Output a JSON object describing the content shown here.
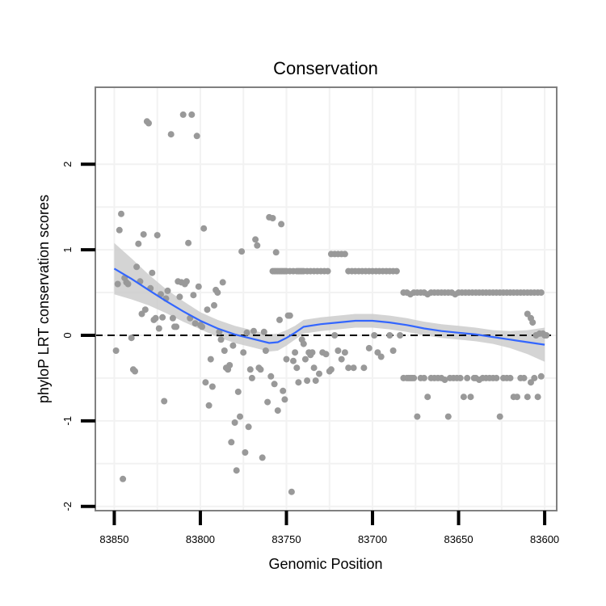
{
  "chart_data": {
    "type": "scatter",
    "title": "Conservation",
    "xlabel": "Genomic Position",
    "ylabel": "phyloP LRT conservation scores",
    "x_reversed": true,
    "xlim": [
      83861,
      83593
    ],
    "ylim": [
      -2.05,
      2.9
    ],
    "xticks": [
      83850,
      83800,
      83750,
      83700,
      83650,
      83600
    ],
    "xtick_labels": [
      "83850",
      "83800",
      "83750",
      "83700",
      "83650",
      "83600"
    ],
    "yticks": [
      -2,
      -1,
      0,
      1,
      2
    ],
    "ytick_labels": [
      "-2",
      "-1",
      "0",
      "1",
      "2"
    ],
    "reference_line": {
      "y": 0,
      "style": "dashed"
    },
    "colors": {
      "points": "#999999",
      "smooth": "#3366ff",
      "band": "#cccccc",
      "border": "#808080",
      "grid": "#f2f2f2"
    },
    "series": [
      {
        "name": "scores",
        "points": [
          [
            83849,
            -0.18
          ],
          [
            83848,
            0.6
          ],
          [
            83847,
            1.23
          ],
          [
            83846,
            1.42
          ],
          [
            83845,
            -1.68
          ],
          [
            83844,
            0.67
          ],
          [
            83843,
            0.62
          ],
          [
            83842,
            0.6
          ],
          [
            83840,
            -0.03
          ],
          [
            83839,
            -0.4
          ],
          [
            83838,
            -0.42
          ],
          [
            83837,
            0.8
          ],
          [
            83836,
            1.07
          ],
          [
            83835,
            0.63
          ],
          [
            83834,
            0.25
          ],
          [
            83833,
            1.18
          ],
          [
            83832,
            0.3
          ],
          [
            83831,
            2.5
          ],
          [
            83830,
            2.48
          ],
          [
            83829,
            0.55
          ],
          [
            83828,
            0.73
          ],
          [
            83827,
            0.18
          ],
          [
            83826,
            0.2
          ],
          [
            83825,
            1.17
          ],
          [
            83824,
            0.08
          ],
          [
            83823,
            0.48
          ],
          [
            83822,
            0.21
          ],
          [
            83821,
            -0.77
          ],
          [
            83820,
            0.43
          ],
          [
            83819,
            0.52
          ],
          [
            83817,
            2.35
          ],
          [
            83816,
            0.2
          ],
          [
            83815,
            0.1
          ],
          [
            83814,
            0.1
          ],
          [
            83813,
            0.63
          ],
          [
            83812,
            0.45
          ],
          [
            83811,
            0.62
          ],
          [
            83810,
            2.58
          ],
          [
            83809,
            0.6
          ],
          [
            83808,
            0.63
          ],
          [
            83807,
            1.08
          ],
          [
            83806,
            0.2
          ],
          [
            83805,
            2.58
          ],
          [
            83804,
            0.47
          ],
          [
            83803,
            0.14
          ],
          [
            83802,
            2.33
          ],
          [
            83801,
            0.57
          ],
          [
            83800,
            0.12
          ],
          [
            83799,
            0.1
          ],
          [
            83798,
            1.25
          ],
          [
            83797,
            -0.55
          ],
          [
            83796,
            0.3
          ],
          [
            83795,
            -0.82
          ],
          [
            83794,
            -0.28
          ],
          [
            83793,
            -0.6
          ],
          [
            83792,
            0.35
          ],
          [
            83791,
            0.53
          ],
          [
            83790,
            0.5
          ],
          [
            83789,
            0.04
          ],
          [
            83788,
            -0.05
          ],
          [
            83787,
            0.62
          ],
          [
            83786,
            -0.18
          ],
          [
            83785,
            -0.38
          ],
          [
            83784,
            -0.4
          ],
          [
            83783,
            -0.35
          ],
          [
            83782,
            -1.25
          ],
          [
            83781,
            -0.12
          ],
          [
            83780,
            -1.02
          ],
          [
            83779,
            -1.58
          ],
          [
            83778,
            -0.66
          ],
          [
            83777,
            -0.95
          ],
          [
            83776,
            0.98
          ],
          [
            83775,
            -0.2
          ],
          [
            83774,
            -1.37
          ],
          [
            83773,
            0.03
          ],
          [
            83772,
            -1.07
          ],
          [
            83771,
            -0.4
          ],
          [
            83770,
            -0.5
          ],
          [
            83769,
            0.05
          ],
          [
            83768,
            1.12
          ],
          [
            83767,
            1.05
          ],
          [
            83766,
            -0.38
          ],
          [
            83765,
            -0.4
          ],
          [
            83764,
            -1.43
          ],
          [
            83763,
            0.04
          ],
          [
            83762,
            -0.18
          ],
          [
            83761,
            -0.78
          ],
          [
            83760,
            1.38
          ],
          [
            83759,
            -0.48
          ],
          [
            83758,
            1.37
          ],
          [
            83757,
            -0.57
          ],
          [
            83756,
            0.97
          ],
          [
            83755,
            -0.88
          ],
          [
            83754,
            0.18
          ],
          [
            83753,
            1.3
          ],
          [
            83752,
            -0.65
          ],
          [
            83751,
            -0.75
          ],
          [
            83750,
            -0.28
          ],
          [
            83749,
            0.23
          ],
          [
            83748,
            0.23
          ],
          [
            83747,
            -1.83
          ],
          [
            83746,
            -0.3
          ],
          [
            83745,
            -0.2
          ],
          [
            83744,
            -0.38
          ],
          [
            83743,
            -0.55
          ],
          [
            83741,
            -0.05
          ],
          [
            83740,
            -0.1
          ],
          [
            83739,
            -0.28
          ],
          [
            83738,
            -0.53
          ],
          [
            83737,
            -0.2
          ],
          [
            83736,
            -0.23
          ],
          [
            83735,
            -0.2
          ],
          [
            83734,
            -0.38
          ],
          [
            83733,
            -0.53
          ],
          [
            83731,
            -0.45
          ],
          [
            83729,
            -0.2
          ],
          [
            83727,
            -0.22
          ],
          [
            83725,
            -0.42
          ],
          [
            83724,
            -0.4
          ],
          [
            83722,
            0.0
          ],
          [
            83720,
            -0.18
          ],
          [
            83718,
            -0.28
          ],
          [
            83716,
            -0.2
          ],
          [
            83714,
            -0.38
          ],
          [
            83758,
            0.75
          ],
          [
            83757,
            0.75
          ],
          [
            83756,
            0.75
          ],
          [
            83755,
            0.75
          ],
          [
            83754,
            0.75
          ],
          [
            83753,
            0.75
          ],
          [
            83752,
            0.75
          ],
          [
            83751,
            0.75
          ],
          [
            83750,
            0.75
          ],
          [
            83748,
            0.75
          ],
          [
            83746,
            0.75
          ],
          [
            83744,
            0.75
          ],
          [
            83743,
            0.75
          ],
          [
            83742,
            0.75
          ],
          [
            83741,
            0.75
          ],
          [
            83740,
            0.75
          ],
          [
            83738,
            0.75
          ],
          [
            83736,
            0.75
          ],
          [
            83734,
            0.75
          ],
          [
            83732,
            0.75
          ],
          [
            83730,
            0.75
          ],
          [
            83728,
            0.75
          ],
          [
            83726,
            0.75
          ],
          [
            83724,
            0.95
          ],
          [
            83722,
            0.95
          ],
          [
            83720,
            0.95
          ],
          [
            83718,
            0.95
          ],
          [
            83716,
            0.95
          ],
          [
            83714,
            0.75
          ],
          [
            83712,
            0.75
          ],
          [
            83710,
            0.75
          ],
          [
            83708,
            0.75
          ],
          [
            83706,
            0.75
          ],
          [
            83704,
            0.75
          ],
          [
            83702,
            0.75
          ],
          [
            83700,
            0.75
          ],
          [
            83698,
            0.75
          ],
          [
            83696,
            0.75
          ],
          [
            83694,
            0.75
          ],
          [
            83692,
            0.75
          ],
          [
            83690,
            0.75
          ],
          [
            83688,
            0.75
          ],
          [
            83686,
            0.75
          ],
          [
            83711,
            -0.38
          ],
          [
            83705,
            -0.38
          ],
          [
            83702,
            -0.15
          ],
          [
            83699,
            0.0
          ],
          [
            83697,
            -0.2
          ],
          [
            83695,
            -0.25
          ],
          [
            83690,
            0.0
          ],
          [
            83688,
            -0.18
          ],
          [
            83684,
            0.0
          ],
          [
            83682,
            -0.5
          ],
          [
            83680,
            -0.5
          ],
          [
            83679,
            -0.5
          ],
          [
            83678,
            -0.5
          ],
          [
            83677,
            -0.5
          ],
          [
            83676,
            -0.5
          ],
          [
            83674,
            -0.95
          ],
          [
            83672,
            -0.5
          ],
          [
            83670,
            -0.5
          ],
          [
            83668,
            -0.72
          ],
          [
            83666,
            -0.5
          ],
          [
            83664,
            -0.5
          ],
          [
            83662,
            -0.5
          ],
          [
            83660,
            -0.5
          ],
          [
            83658,
            -0.52
          ],
          [
            83656,
            -0.95
          ],
          [
            83655,
            -0.5
          ],
          [
            83653,
            -0.5
          ],
          [
            83651,
            -0.5
          ],
          [
            83649,
            -0.5
          ],
          [
            83647,
            -0.72
          ],
          [
            83645,
            -0.5
          ],
          [
            83643,
            -0.72
          ],
          [
            83641,
            -0.5
          ],
          [
            83640,
            -0.5
          ],
          [
            83638,
            -0.52
          ],
          [
            83636,
            -0.5
          ],
          [
            83634,
            -0.5
          ],
          [
            83632,
            -0.5
          ],
          [
            83630,
            -0.5
          ],
          [
            83628,
            -0.5
          ],
          [
            83626,
            -0.95
          ],
          [
            83624,
            -0.5
          ],
          [
            83622,
            -0.5
          ],
          [
            83620,
            -0.5
          ],
          [
            83618,
            -0.72
          ],
          [
            83616,
            -0.72
          ],
          [
            83614,
            -0.5
          ],
          [
            83612,
            -0.5
          ],
          [
            83610,
            -0.72
          ],
          [
            83608,
            -0.55
          ],
          [
            83606,
            -0.5
          ],
          [
            83604,
            -0.72
          ],
          [
            83602,
            -0.48
          ],
          [
            83600,
            0.0
          ],
          [
            83682,
            0.5
          ],
          [
            83680,
            0.5
          ],
          [
            83678,
            0.48
          ],
          [
            83676,
            0.5
          ],
          [
            83674,
            0.5
          ],
          [
            83672,
            0.5
          ],
          [
            83670,
            0.5
          ],
          [
            83668,
            0.48
          ],
          [
            83666,
            0.5
          ],
          [
            83664,
            0.5
          ],
          [
            83662,
            0.5
          ],
          [
            83660,
            0.5
          ],
          [
            83658,
            0.5
          ],
          [
            83656,
            0.5
          ],
          [
            83654,
            0.5
          ],
          [
            83652,
            0.48
          ],
          [
            83650,
            0.5
          ],
          [
            83648,
            0.5
          ],
          [
            83646,
            0.5
          ],
          [
            83644,
            0.5
          ],
          [
            83642,
            0.5
          ],
          [
            83640,
            0.5
          ],
          [
            83638,
            0.5
          ],
          [
            83636,
            0.5
          ],
          [
            83634,
            0.5
          ],
          [
            83632,
            0.5
          ],
          [
            83630,
            0.5
          ],
          [
            83628,
            0.5
          ],
          [
            83626,
            0.5
          ],
          [
            83624,
            0.5
          ],
          [
            83622,
            0.5
          ],
          [
            83620,
            0.5
          ],
          [
            83618,
            0.5
          ],
          [
            83616,
            0.5
          ],
          [
            83614,
            0.5
          ],
          [
            83612,
            0.5
          ],
          [
            83610,
            0.5
          ],
          [
            83608,
            0.5
          ],
          [
            83606,
            0.5
          ],
          [
            83604,
            0.5
          ],
          [
            83602,
            0.5
          ],
          [
            83610,
            0.25
          ],
          [
            83608,
            0.2
          ],
          [
            83607,
            0.15
          ],
          [
            83605,
            0.0
          ],
          [
            83603,
            0.02
          ],
          [
            83601,
            0.02
          ],
          [
            83599,
            0.0
          ]
        ]
      }
    ],
    "smooth": {
      "x": [
        83850,
        83840,
        83830,
        83820,
        83810,
        83800,
        83790,
        83780,
        83770,
        83760,
        83755,
        83750,
        83745,
        83740,
        83730,
        83720,
        83710,
        83700,
        83690,
        83680,
        83670,
        83660,
        83650,
        83640,
        83630,
        83620,
        83610,
        83600
      ],
      "y": [
        0.78,
        0.66,
        0.53,
        0.4,
        0.28,
        0.17,
        0.08,
        0.01,
        -0.04,
        -0.09,
        -0.08,
        -0.03,
        0.03,
        0.1,
        0.13,
        0.15,
        0.17,
        0.17,
        0.15,
        0.12,
        0.08,
        0.05,
        0.03,
        0.01,
        -0.02,
        -0.05,
        -0.08,
        -0.11
      ],
      "band_width": [
        0.3,
        0.24,
        0.18,
        0.14,
        0.12,
        0.1,
        0.1,
        0.1,
        0.1,
        0.1,
        0.1,
        0.09,
        0.08,
        0.08,
        0.08,
        0.08,
        0.08,
        0.08,
        0.08,
        0.08,
        0.08,
        0.08,
        0.08,
        0.08,
        0.08,
        0.1,
        0.14,
        0.2
      ]
    }
  }
}
